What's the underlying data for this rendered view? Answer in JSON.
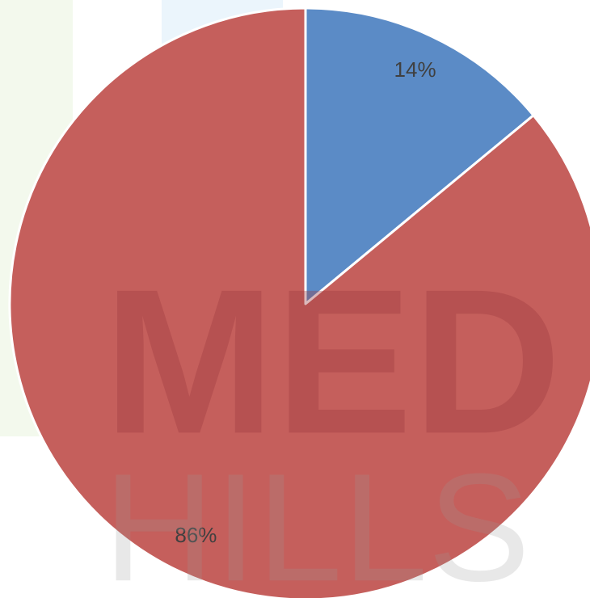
{
  "chart_data": {
    "type": "pie",
    "categories": [
      null,
      null
    ],
    "values": [
      14,
      86
    ],
    "value_labels": [
      "14%",
      "86%"
    ],
    "colors": [
      "#5b8bc6",
      "#c55f5c"
    ],
    "start_angle": 0,
    "direction": "clockwise",
    "watermark": {
      "line1": "MED",
      "line2": "HILLS"
    }
  }
}
